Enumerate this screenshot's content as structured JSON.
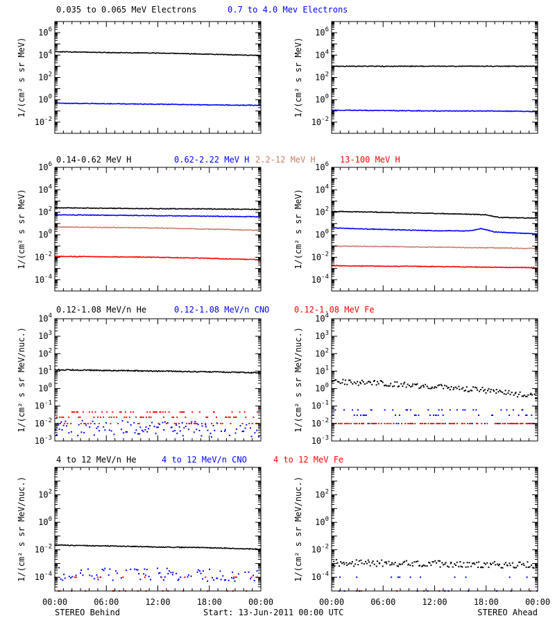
{
  "colors": {
    "black": "#000000",
    "blue": "#0000ff",
    "tan": "#c87f6a",
    "red": "#ff0000"
  },
  "footer": {
    "left": "STEREO Behind",
    "center": "Start: 13-Jun-2011 00:00 UTC",
    "right": "STEREO Ahead"
  },
  "rows": [
    {
      "titles": [
        {
          "text": "0.035 to 0.065 MeV Electrons",
          "color": "#000000"
        },
        {
          "text": "0.7 to 4.0 Mev Electrons",
          "color": "#0000ff"
        }
      ]
    },
    {
      "titles": [
        {
          "text": "0.14-0.62 MeV H",
          "color": "#000000"
        },
        {
          "text": "0.62-2.22 MeV H",
          "color": "#0000ff"
        },
        {
          "text": "2.2-12 MeV H",
          "color": "#c87f6a"
        },
        {
          "text": "13-100 MeV H",
          "color": "#ff0000"
        }
      ]
    },
    {
      "titles": [
        {
          "text": "0.12-1.08 MeV/n He",
          "color": "#000000"
        },
        {
          "text": "0.12-1.08 MeV/n CNO",
          "color": "#0000ff"
        },
        {
          "text": "0.12-1.08 MeV Fe",
          "color": "#ff0000"
        }
      ]
    },
    {
      "titles": [
        {
          "text": "4 to 12 MeV/n He",
          "color": "#000000"
        },
        {
          "text": "4 to 12 MeV/n CNO",
          "color": "#0000ff"
        },
        {
          "text": "4 to 12 MeV Fe",
          "color": "#ff0000"
        }
      ]
    }
  ],
  "chart_data": [
    {
      "type": "line",
      "row": 0,
      "col": 0,
      "scale": "log",
      "ylabel": "1/(cm² s sr MeV)",
      "ylim_exp": [
        -3,
        7
      ],
      "tick_exps": [
        -2,
        0,
        2,
        4,
        6
      ],
      "xlim": [
        "00:00",
        "24:00"
      ],
      "xticks": [
        "00:00",
        "06:00",
        "12:00",
        "18:00",
        "00:00"
      ],
      "series": [
        {
          "color": "#000000",
          "style": "line",
          "x": [
            0,
            6,
            12,
            18,
            24
          ],
          "y": [
            20000,
            17000,
            15000,
            12000,
            9000
          ]
        },
        {
          "color": "#0000ff",
          "style": "line",
          "x": [
            0,
            6,
            12,
            18,
            24
          ],
          "y": [
            0.5,
            0.45,
            0.4,
            0.35,
            0.32
          ]
        }
      ]
    },
    {
      "type": "line",
      "row": 0,
      "col": 1,
      "scale": "log",
      "ylabel": "1/(cm² s sr MeV)",
      "ylim_exp": [
        -3,
        7
      ],
      "tick_exps": [
        -2,
        0,
        2,
        4,
        6
      ],
      "xlim": [
        "00:00",
        "24:00"
      ],
      "xticks": [
        "00:00",
        "06:00",
        "12:00",
        "18:00",
        "00:00"
      ],
      "series": [
        {
          "color": "#000000",
          "style": "line",
          "x": [
            0,
            6,
            12,
            18,
            24
          ],
          "y": [
            1000,
            1000,
            1000,
            1000,
            1000
          ]
        },
        {
          "color": "#0000ff",
          "style": "line",
          "x": [
            0,
            6,
            12,
            18,
            24
          ],
          "y": [
            0.12,
            0.11,
            0.1,
            0.1,
            0.09
          ]
        }
      ]
    },
    {
      "type": "line",
      "row": 1,
      "col": 0,
      "scale": "log",
      "ylabel": "1/(cm² s sr MeV)",
      "ylim_exp": [
        -5,
        6
      ],
      "tick_exps": [
        -4,
        -2,
        0,
        2,
        4,
        6
      ],
      "xlim": [
        "00:00",
        "24:00"
      ],
      "xticks": [
        "00:00",
        "06:00",
        "12:00",
        "18:00",
        "00:00"
      ],
      "series": [
        {
          "color": "#000000",
          "style": "line",
          "x": [
            0,
            6,
            12,
            18,
            24
          ],
          "y": [
            250,
            230,
            210,
            200,
            180
          ]
        },
        {
          "color": "#0000ff",
          "style": "line",
          "x": [
            0,
            6,
            12,
            18,
            24
          ],
          "y": [
            60,
            55,
            50,
            45,
            40
          ]
        },
        {
          "color": "#c87f6a",
          "style": "line",
          "x": [
            0,
            6,
            12,
            18,
            24
          ],
          "y": [
            5,
            4.5,
            4,
            3.2,
            2.5
          ]
        },
        {
          "color": "#ff0000",
          "style": "line",
          "x": [
            0,
            6,
            12,
            18,
            24
          ],
          "y": [
            0.012,
            0.011,
            0.01,
            0.008,
            0.006
          ]
        }
      ]
    },
    {
      "type": "line",
      "row": 1,
      "col": 1,
      "scale": "log",
      "ylabel": "1/(cm² s sr MeV)",
      "ylim_exp": [
        -5,
        6
      ],
      "tick_exps": [
        -4,
        -2,
        0,
        2,
        4,
        6
      ],
      "xlim": [
        "00:00",
        "24:00"
      ],
      "xticks": [
        "00:00",
        "06:00",
        "12:00",
        "18:00",
        "00:00"
      ],
      "series": [
        {
          "color": "#000000",
          "style": "line",
          "x": [
            0,
            6,
            12,
            15,
            18,
            19.5,
            24
          ],
          "y": [
            120,
            100,
            80,
            70,
            60,
            35,
            30
          ]
        },
        {
          "color": "#0000ff",
          "style": "line",
          "x": [
            0,
            6,
            12,
            16,
            17.5,
            19,
            24
          ],
          "y": [
            4,
            3,
            2.3,
            2.2,
            3.5,
            1.8,
            1.2
          ]
        },
        {
          "color": "#c87f6a",
          "style": "line",
          "x": [
            0,
            6,
            12,
            18,
            24
          ],
          "y": [
            0.1,
            0.09,
            0.08,
            0.07,
            0.06
          ]
        },
        {
          "color": "#ff0000",
          "style": "line",
          "x": [
            0,
            6,
            12,
            18,
            24
          ],
          "y": [
            0.0018,
            0.0016,
            0.0015,
            0.0013,
            0.0012
          ]
        }
      ]
    },
    {
      "type": "scatter",
      "row": 2,
      "col": 0,
      "scale": "log",
      "ylabel": "1/(cm² s sr MeV/nuc.)",
      "ylim_exp": [
        -3,
        4
      ],
      "tick_exps": [
        -3,
        -2,
        -1,
        0,
        1,
        2,
        3,
        4
      ],
      "xlim": [
        "00:00",
        "24:00"
      ],
      "xticks": [
        "00:00",
        "06:00",
        "12:00",
        "18:00",
        "00:00"
      ],
      "series": [
        {
          "color": "#000000",
          "style": "line",
          "x": [
            0,
            6,
            12,
            18,
            24
          ],
          "y": [
            12,
            11,
            10,
            9,
            8
          ]
        },
        {
          "color": "#0000ff",
          "style": "dots",
          "x": [
            0,
            6,
            12,
            18,
            24
          ],
          "y": [
            0.1,
            0.1,
            0.1,
            0.08,
            0.08
          ],
          "spread": [
            0.02,
            0.15
          ],
          "density": 0.75
        },
        {
          "color": "#ff0000",
          "style": "dots",
          "x": [
            0,
            6,
            12,
            18,
            24
          ],
          "y": [
            0.015,
            0.015,
            0.015,
            0.015,
            0.015
          ],
          "levels": [
            0.01,
            0.023,
            0.045
          ],
          "density": 0.8
        }
      ]
    },
    {
      "type": "scatter",
      "row": 2,
      "col": 1,
      "scale": "log",
      "ylabel": "1/(cm² s sr MeV/nuc.)",
      "ylim_exp": [
        -3,
        4
      ],
      "tick_exps": [
        -3,
        -2,
        -1,
        0,
        1,
        2,
        3,
        4
      ],
      "xlim": [
        "00:00",
        "24:00"
      ],
      "xticks": [
        "00:00",
        "06:00",
        "12:00",
        "18:00",
        "00:00"
      ],
      "series": [
        {
          "color": "#000000",
          "style": "dots",
          "x": [
            0,
            6,
            12,
            18,
            24
          ],
          "y": [
            2.5,
            2,
            1.3,
            0.8,
            0.35
          ],
          "spread": [
            0.7,
            1.4
          ],
          "density": 1.0
        },
        {
          "color": "#0000ff",
          "style": "dots",
          "x": [
            0,
            6,
            12,
            18,
            24
          ],
          "y": [
            0.03,
            0.02,
            0.015,
            0.012,
            0.011
          ],
          "levels": [
            0.01,
            0.03,
            0.06
          ],
          "density": 0.45
        },
        {
          "color": "#ff0000",
          "style": "dots",
          "x": [
            0,
            6,
            12,
            18,
            24
          ],
          "y": [
            0.01,
            0.01,
            0.01,
            0.01,
            0.01
          ],
          "levels": [
            0.01
          ],
          "density": 0.6
        }
      ]
    },
    {
      "type": "scatter",
      "row": 3,
      "col": 0,
      "scale": "log",
      "ylabel": "1/(cm² s sr MeV/nuc.)",
      "ylim_exp": [
        -5,
        4
      ],
      "tick_exps": [
        -4,
        -2,
        0,
        2
      ],
      "xlim": [
        "00:00",
        "24:00"
      ],
      "xticks": [
        "00:00",
        "06:00",
        "12:00",
        "18:00",
        "00:00"
      ],
      "series": [
        {
          "color": "#000000",
          "style": "line",
          "x": [
            0,
            6,
            12,
            18,
            24
          ],
          "y": [
            0.022,
            0.019,
            0.016,
            0.014,
            0.011
          ]
        },
        {
          "color": "#0000ff",
          "style": "dots",
          "x": [
            0,
            6,
            12,
            18,
            24
          ],
          "y": [
            0.0002,
            0.0002,
            0.00018,
            0.00017,
            0.00016
          ],
          "spread": [
            0.3,
            2.5
          ],
          "density": 0.6
        },
        {
          "color": "#ff0000",
          "style": "dots",
          "x": [
            0,
            6,
            12,
            18,
            24
          ],
          "y": [
            2e-05,
            2e-05,
            2e-05,
            2e-05,
            2e-05
          ],
          "levels": [
            1e-05,
            0.0001
          ],
          "density": 0.25
        }
      ]
    },
    {
      "type": "scatter",
      "row": 3,
      "col": 1,
      "scale": "log",
      "ylabel": "1/(cm² s sr MeV/nuc.)",
      "ylim_exp": [
        -5,
        4
      ],
      "tick_exps": [
        -4,
        -2,
        0,
        2
      ],
      "xlim": [
        "00:00",
        "24:00"
      ],
      "xticks": [
        "00:00",
        "06:00",
        "12:00",
        "18:00",
        "00:00"
      ],
      "series": [
        {
          "color": "#000000",
          "style": "dots",
          "x": [
            0,
            6,
            12,
            18,
            24
          ],
          "y": [
            0.0012,
            0.0011,
            0.001,
            0.0009,
            0.0008
          ],
          "spread": [
            0.55,
            1.6
          ],
          "density": 1.0
        },
        {
          "color": "#0000ff",
          "style": "dots",
          "x": [
            0,
            6,
            12,
            18,
            24
          ],
          "y": [
            0.0001,
            0.0001,
            0.0001,
            0.0001,
            0.0001
          ],
          "levels": [
            1e-05,
            0.0001
          ],
          "density": 0.18
        },
        {
          "color": "#ff0000",
          "style": "dots",
          "x": [
            0,
            6,
            12,
            18,
            24
          ],
          "y": [
            1e-05,
            1e-05,
            1e-05,
            1e-05,
            1e-05
          ],
          "levels": [
            1e-05
          ],
          "density": 0.05
        }
      ]
    }
  ]
}
